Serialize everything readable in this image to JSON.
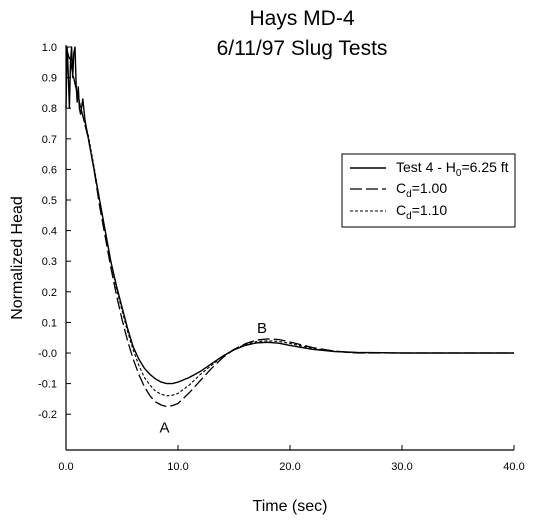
{
  "chart_data": {
    "type": "line",
    "title": [
      "Hays MD-4",
      "6/11/97 Slug Tests"
    ],
    "xlabel": "Time (sec)",
    "ylabel": "Normalized Head",
    "xlim": [
      0,
      40
    ],
    "ylim": [
      -0.2,
      1.0
    ],
    "x_ticks": [
      0,
      10,
      20,
      30,
      40
    ],
    "x_tick_labels": [
      "0.0",
      "10.0",
      "20.0",
      "30.0",
      "40.0"
    ],
    "y_ticks": [
      1.0,
      0.9,
      0.8,
      0.7,
      0.6,
      0.5,
      0.4,
      0.3,
      0.2,
      0.1,
      0.0,
      -0.1,
      -0.2
    ],
    "y_tick_labels": [
      "1.0",
      "0.9",
      "0.8",
      "0.7",
      "0.6",
      "0.5",
      "0.4",
      "0.3",
      "0.2",
      "0.1",
      "-0.0",
      "-0.1",
      "-0.2"
    ],
    "grid": false,
    "legend_position": "right",
    "series": [
      {
        "name_parts": [
          "Test 4 - H",
          "0",
          "=6.25 ft"
        ],
        "style": "solid",
        "x": [
          0,
          0.1,
          0.2,
          0.3,
          0.4,
          0.5,
          0.6,
          0.7,
          0.8,
          0.9,
          1.0,
          1.1,
          1.2,
          1.3,
          1.5,
          1.7,
          2.0,
          2.5,
          3.0,
          3.5,
          4.0,
          4.5,
          5.0,
          5.5,
          6.0,
          6.5,
          7.0,
          7.5,
          8.0,
          8.5,
          9.0,
          9.5,
          10.0,
          11.0,
          12.0,
          13.0,
          14.0,
          15.0,
          16.0,
          17.0,
          18.0,
          19.0,
          20.0,
          22.0,
          24.0,
          26.0,
          30.0,
          35.0,
          40.0
        ],
        "y": [
          0.8,
          1.0,
          0.92,
          0.8,
          0.95,
          1.0,
          0.9,
          0.98,
          1.0,
          0.88,
          0.82,
          0.87,
          0.8,
          0.78,
          0.83,
          0.76,
          0.7,
          0.6,
          0.5,
          0.4,
          0.3,
          0.22,
          0.15,
          0.08,
          0.02,
          -0.02,
          -0.05,
          -0.07,
          -0.085,
          -0.095,
          -0.1,
          -0.1,
          -0.095,
          -0.08,
          -0.06,
          -0.035,
          -0.01,
          0.01,
          0.025,
          0.033,
          0.035,
          0.032,
          0.025,
          0.012,
          0.005,
          0.002,
          0.0,
          0.0,
          0.0
        ]
      },
      {
        "name_parts": [
          "C",
          "d",
          "=1.00"
        ],
        "style": "long-dash",
        "x": [
          0,
          0.4,
          0.8,
          1.2,
          1.6,
          2.0,
          2.5,
          3.0,
          3.5,
          4.0,
          4.5,
          5.0,
          5.5,
          6.0,
          6.5,
          7.0,
          7.5,
          8.0,
          8.5,
          9.0,
          9.5,
          10.0,
          11.0,
          12.0,
          13.0,
          14.0,
          15.0,
          16.0,
          17.0,
          18.0,
          19.0,
          20.0,
          22.0,
          24.0,
          26.0,
          30.0,
          35.0,
          40.0
        ],
        "y": [
          1.0,
          0.95,
          0.88,
          0.82,
          0.76,
          0.7,
          0.6,
          0.48,
          0.38,
          0.28,
          0.19,
          0.11,
          0.04,
          -0.02,
          -0.07,
          -0.11,
          -0.14,
          -0.16,
          -0.17,
          -0.175,
          -0.172,
          -0.165,
          -0.13,
          -0.09,
          -0.05,
          -0.015,
          0.012,
          0.03,
          0.042,
          0.046,
          0.044,
          0.036,
          0.018,
          0.006,
          0.0,
          0.0,
          0.0,
          0.0
        ]
      },
      {
        "name_parts": [
          "C",
          "d",
          "=1.10"
        ],
        "style": "short-dash",
        "x": [
          0,
          0.4,
          0.8,
          1.2,
          1.6,
          2.0,
          2.5,
          3.0,
          3.5,
          4.0,
          4.5,
          5.0,
          5.5,
          6.0,
          6.5,
          7.0,
          7.5,
          8.0,
          8.5,
          9.0,
          9.5,
          10.0,
          11.0,
          12.0,
          13.0,
          14.0,
          15.0,
          16.0,
          17.0,
          18.0,
          19.0,
          20.0,
          22.0,
          24.0,
          26.0,
          30.0,
          35.0,
          40.0
        ],
        "y": [
          1.0,
          0.95,
          0.88,
          0.82,
          0.76,
          0.71,
          0.61,
          0.5,
          0.4,
          0.3,
          0.21,
          0.14,
          0.07,
          0.01,
          -0.04,
          -0.08,
          -0.105,
          -0.125,
          -0.135,
          -0.14,
          -0.138,
          -0.132,
          -0.105,
          -0.07,
          -0.04,
          -0.01,
          0.012,
          0.028,
          0.037,
          0.04,
          0.038,
          0.031,
          0.015,
          0.005,
          0.0,
          0.0,
          0.0,
          0.0
        ]
      }
    ],
    "annotations": [
      {
        "text": "A",
        "x": 8.8,
        "y": -0.26
      },
      {
        "text": "B",
        "x": 17.5,
        "y": 0.065
      }
    ]
  }
}
